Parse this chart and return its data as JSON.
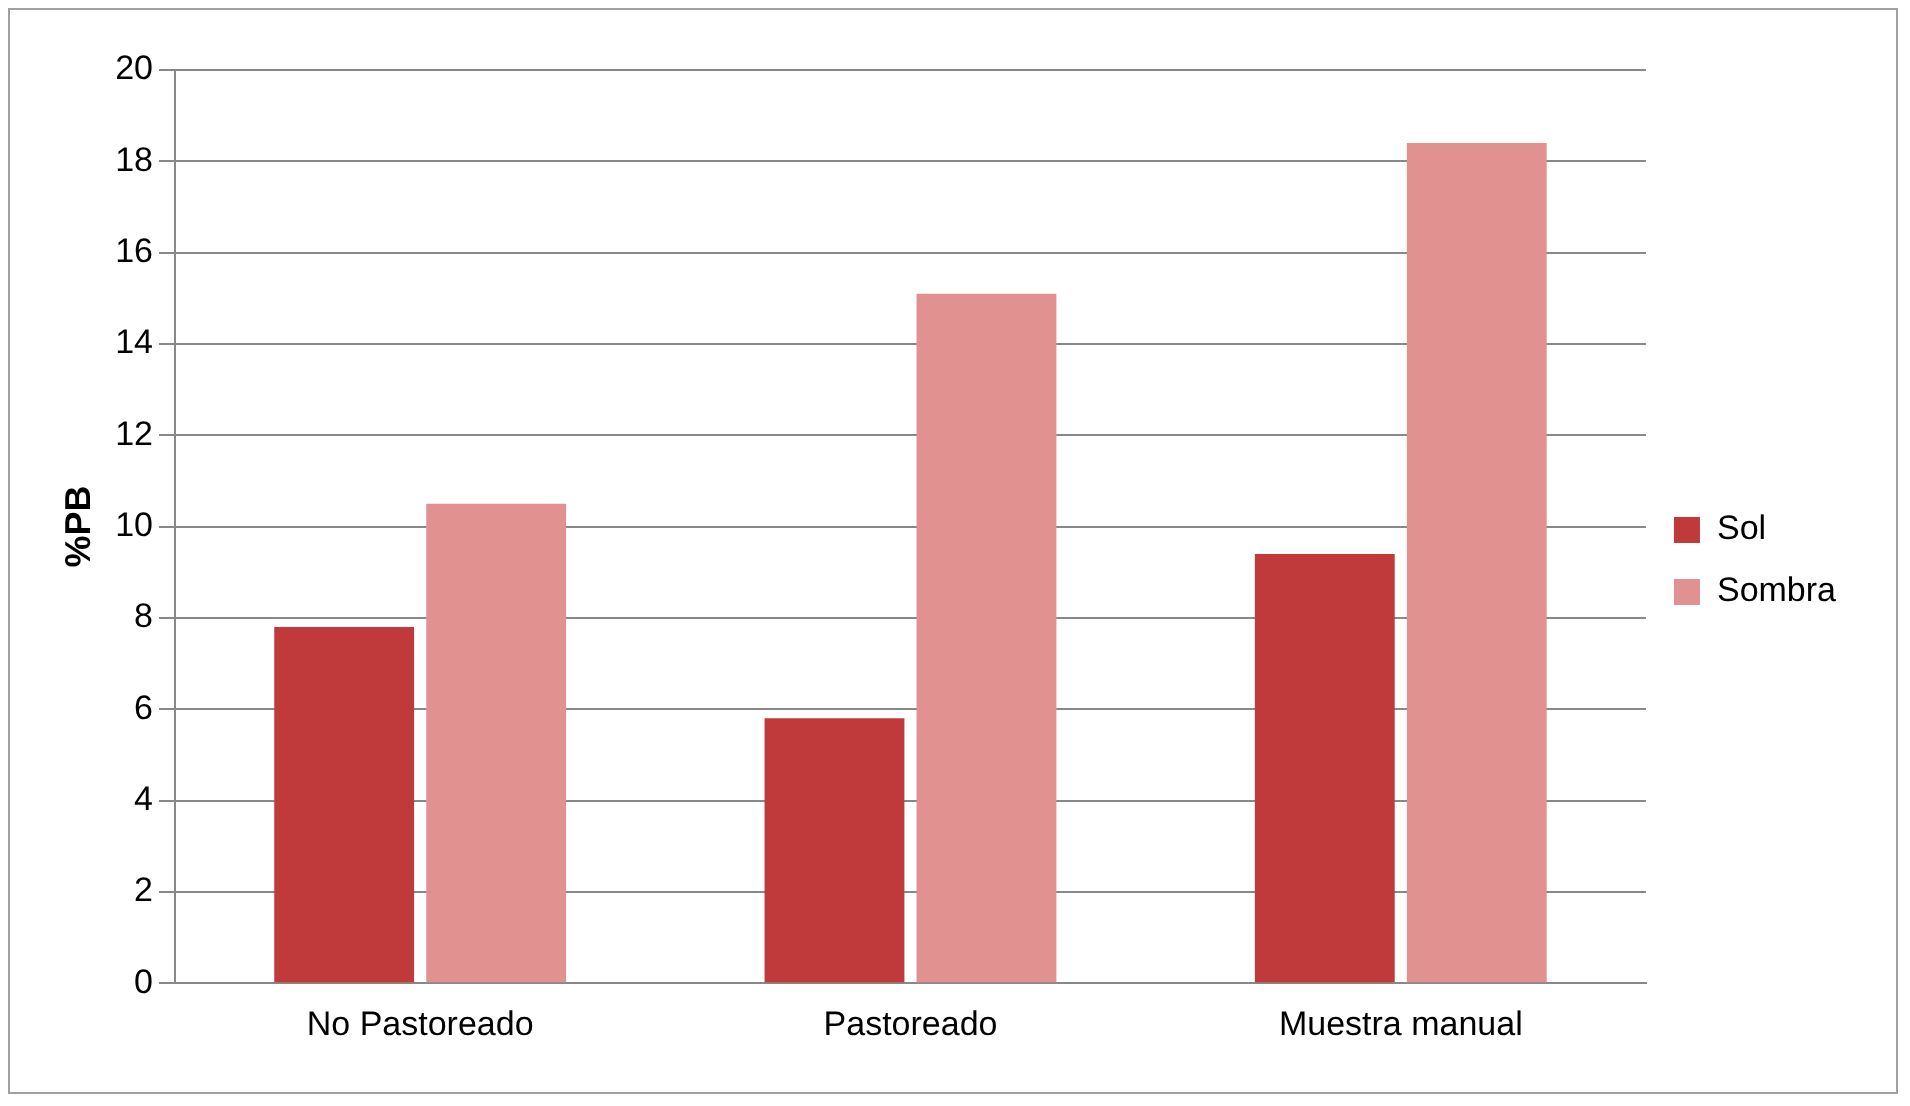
{
  "chart_data": {
    "type": "bar",
    "ylabel": "%PB",
    "categories": [
      "No Pastoreado",
      "Pastoreado",
      "Muestra manual"
    ],
    "series": [
      {
        "name": "Sol",
        "color": "#c0393b",
        "values": [
          7.8,
          5.8,
          9.4
        ]
      },
      {
        "name": "Sombra",
        "color": "#e29191",
        "values": [
          10.5,
          15.1,
          18.4
        ]
      }
    ],
    "ylim": [
      0,
      20
    ],
    "yticks": [
      0,
      2,
      4,
      6,
      8,
      10,
      12,
      14,
      16,
      18,
      20
    ],
    "grid": "y",
    "legend": "right"
  }
}
